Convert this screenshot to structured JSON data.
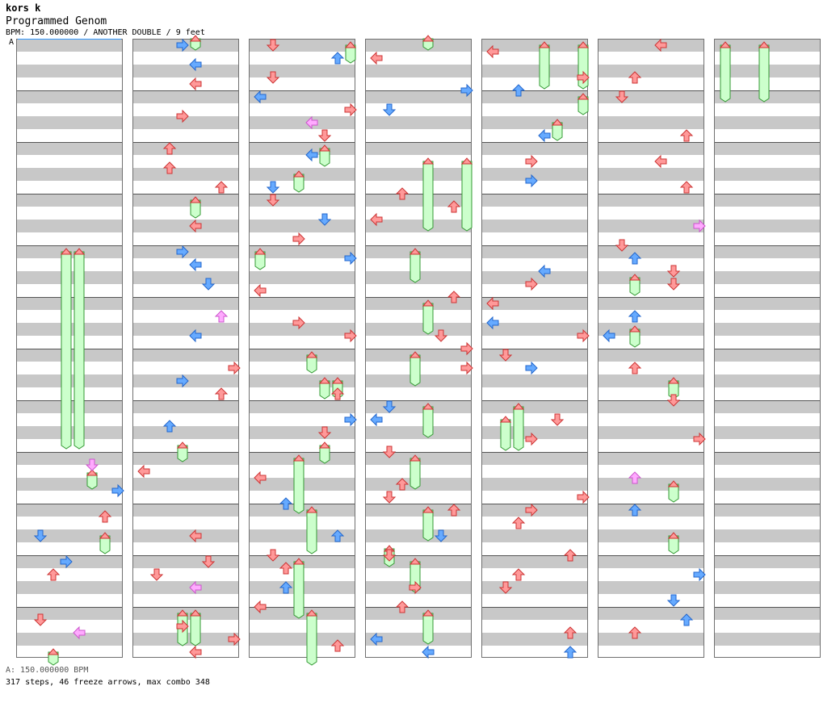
{
  "song": {
    "artist": "kors k",
    "title": "Programmed Genom",
    "meta": "BPM: 150.000000 / ANOTHER DOUBLE / 9 feet",
    "bpm_marker": "A"
  },
  "footer": {
    "bpm_line": "A: 150.000000 BPM",
    "stats_line": "317 steps, 46 freeze arrows, max combo 348"
  },
  "colors": {
    "stripe": "#c8c8c8",
    "border": "#707070",
    "red": "#ff9999",
    "blue": "#66aaff",
    "pink": "#ffaaff",
    "freeze": "#ccffcc",
    "freeze_border": "#339933"
  }
}
